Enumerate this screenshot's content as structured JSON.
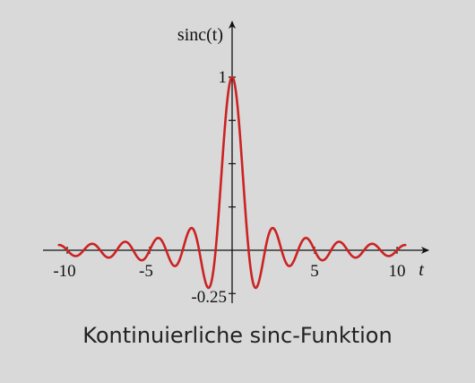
{
  "chart_data": {
    "type": "line",
    "title": "",
    "ylabel": "sinc(t)",
    "xlabel": "t",
    "function": "sinc(t) = sin(pi t)/(pi t)",
    "xlim": [
      -10.5,
      10.5
    ],
    "ylim": [
      -0.25,
      1
    ],
    "x_ticks": [
      -10,
      -5,
      5,
      10
    ],
    "x_tick_labels": [
      "-10",
      "-5",
      "5",
      "10"
    ],
    "y_ticks": [
      -0.25,
      0.25,
      0.5,
      0.75,
      1
    ],
    "y_tick_labels_shown": {
      "1": "1",
      "-0.25": "-0.25"
    },
    "grid": false,
    "series": [
      {
        "color": "#cc2222",
        "x": [
          -10,
          -9.5,
          -9,
          -8.5,
          -8,
          -7.5,
          -7,
          -6.5,
          -6,
          -5.5,
          -5,
          -4.5,
          -4,
          -3.5,
          -3,
          -2.5,
          -2,
          -1.5,
          -1,
          -0.5,
          0,
          0.5,
          1,
          1.5,
          2,
          2.5,
          3,
          3.5,
          4,
          4.5,
          5,
          5.5,
          6,
          6.5,
          7,
          7.5,
          8,
          8.5,
          9,
          9.5,
          10
        ],
        "y": [
          0,
          -0.034,
          0,
          0.037,
          0,
          -0.042,
          0,
          0.049,
          0,
          -0.058,
          0,
          0.071,
          0,
          -0.091,
          0,
          0.127,
          0,
          -0.212,
          0,
          0.637,
          1,
          0.637,
          0,
          -0.212,
          0,
          0.127,
          0,
          -0.091,
          0,
          0.071,
          0,
          -0.058,
          0,
          0.049,
          0,
          -0.042,
          0,
          0.037,
          0,
          -0.034,
          0
        ]
      }
    ]
  },
  "caption": "Kontinuierliche sinc-Funktion"
}
